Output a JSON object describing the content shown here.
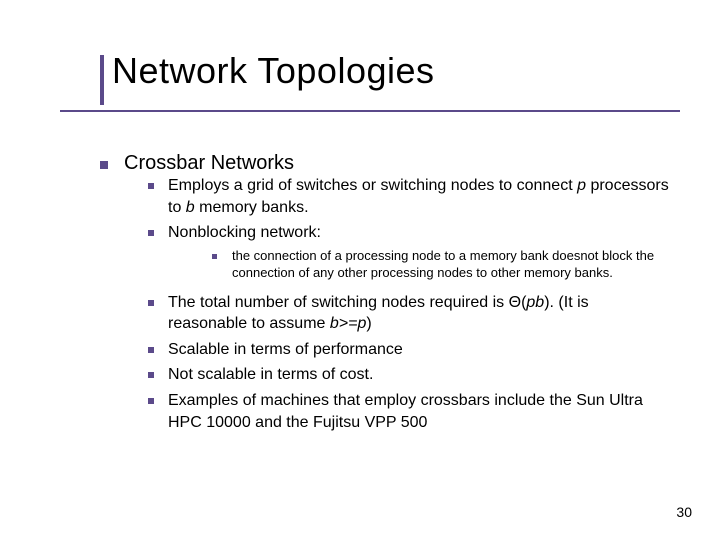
{
  "colors": {
    "accent": "#5b4a8a",
    "text": "#000000",
    "background": "#ffffff"
  },
  "typography": {
    "title_fontsize": 36,
    "lvl1_fontsize": 20,
    "lvl2_fontsize": 16,
    "lvl3_fontsize": 13,
    "pagenum_fontsize": 14,
    "font_family": "Verdana"
  },
  "title": "Network Topologies",
  "lvl1": {
    "text": "Crossbar Networks"
  },
  "lvl2": {
    "a_pre": "Employs a grid of switches or switching nodes to connect ",
    "a_p": "p",
    "a_mid": " processors to ",
    "a_b": "b",
    "a_post": " memory banks.",
    "b": "Nonblocking network:",
    "c_pre": "The total number of switching nodes required is Θ(",
    "c_pb": "pb",
    "c_mid": "). (It is reasonable to assume ",
    "c_ineq": "b>=p",
    "c_post": ")",
    "d": "Scalable in terms of performance",
    "e": "Not scalable in terms of cost.",
    "f": "Examples of machines that employ crossbars include the Sun Ultra HPC 10000 and the Fujitsu VPP 500"
  },
  "lvl3": {
    "a": "the connection of a processing node to a memory bank doesnot block the connection of any other processing nodes to other memory banks."
  },
  "pagenum": "30"
}
